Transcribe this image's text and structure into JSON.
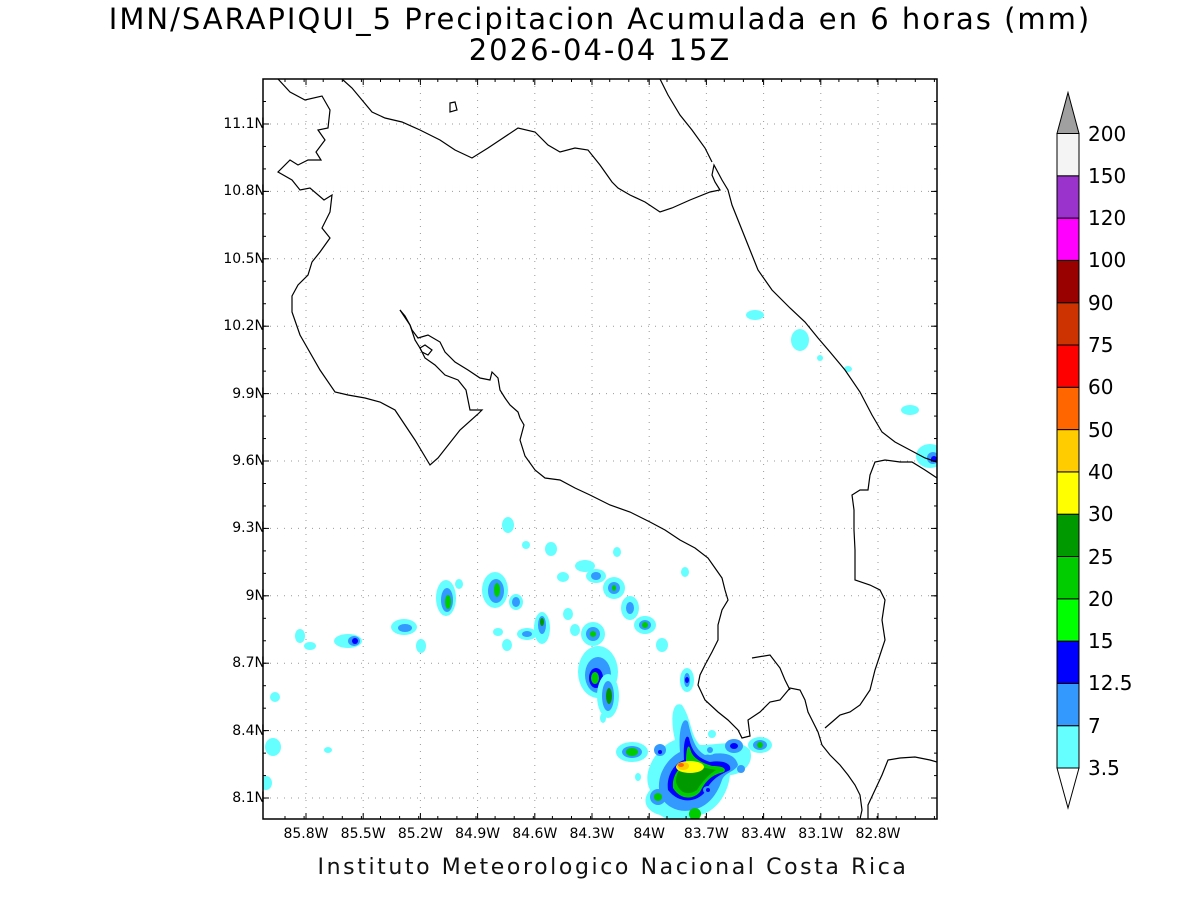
{
  "title": "IMN/SARAPIQUI_5 Precipitacion Acumulada en 6 horas (mm)",
  "subtitle": "2026-04-04 15Z",
  "footer": "Instituto Meteorologico Nacional Costa Rica",
  "lat_labels": [
    "11.1N",
    "10.8N",
    "10.5N",
    "10.2N",
    "9.9N",
    "9.6N",
    "9.3N",
    "9N",
    "8.7N",
    "8.4N",
    "8.1N"
  ],
  "lon_labels": [
    "85.8W",
    "85.5W",
    "85.2W",
    "84.9W",
    "84.6W",
    "84.3W",
    "84W",
    "83.7W",
    "83.4W",
    "83.1W",
    "82.8W"
  ],
  "colorbar": {
    "levels": [
      "3.5",
      "7",
      "12.5",
      "15",
      "20",
      "25",
      "30",
      "40",
      "50",
      "60",
      "75",
      "90",
      "100",
      "120",
      "150",
      "200"
    ],
    "colors": [
      "#66ffff",
      "#3399ff",
      "#0000ff",
      "#00ff00",
      "#00cc00",
      "#009900",
      "#ffff00",
      "#ffcc00",
      "#ff6600",
      "#ff0000",
      "#cc3300",
      "#990000",
      "#ff00ff",
      "#9933cc",
      "#f4f4f4",
      "#a0a0a0"
    ]
  }
}
